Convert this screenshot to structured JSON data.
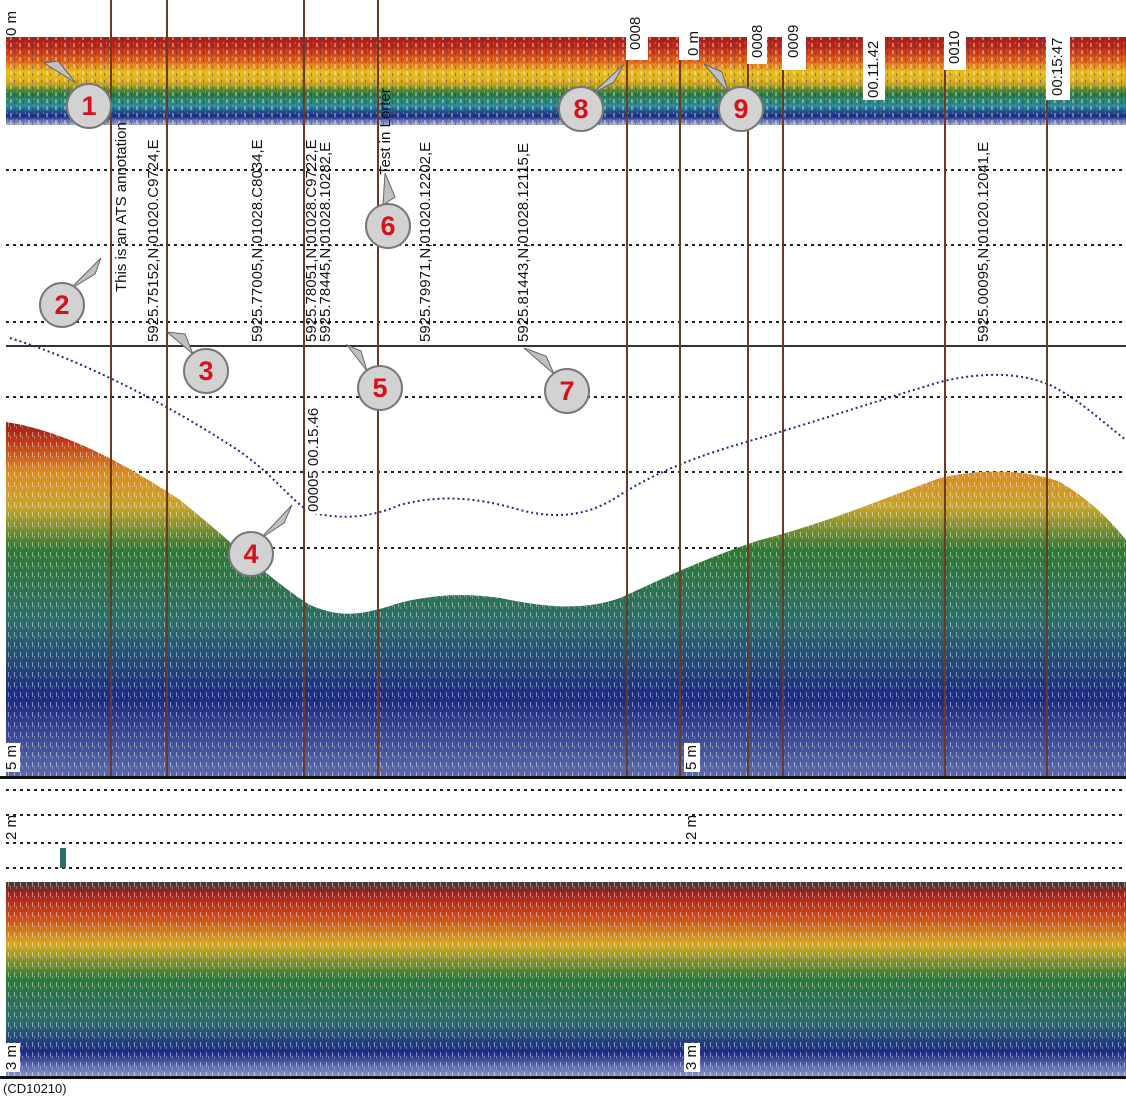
{
  "echogram": {
    "upper_panel": {
      "depth_top_label": "0 m",
      "depth_bottom_label": "5 m"
    },
    "lower_panel": {
      "depth_top_label": "2 m",
      "depth_bottom_label": "3 m"
    },
    "annotations": {
      "ats_annotation": "This is an ATS annotation",
      "position_1": "5925.75152,N,01020.C9724,E",
      "position_2": "5925.77005,N,01028.C8034,E",
      "position_3a": "5925.78051,N,01028.C9722,E",
      "position_3b": "5925.78445,N,01028.10282,E",
      "time_label": "00005 00.15.46",
      "test_annotation": "Test in Lorter",
      "position_4": "5925.79971,N,01020.12202,E",
      "position_5": "5925.81443,N,01028.12115,E",
      "right_time_1": "00.11.42",
      "right_time_2": "00:15:47",
      "right_position": "5925.00095,N,01020.12041,E",
      "right_depth": "0 m",
      "marker_a": "0008",
      "marker_b": "0008",
      "marker_c": "0009",
      "marker_d": "0010"
    }
  },
  "callouts": [
    {
      "label": "1"
    },
    {
      "label": "2"
    },
    {
      "label": "3"
    },
    {
      "label": "4"
    },
    {
      "label": "5"
    },
    {
      "label": "6"
    },
    {
      "label": "7"
    },
    {
      "label": "8"
    },
    {
      "label": "9"
    }
  ],
  "caption": "(CD10210)",
  "colors": {
    "red": "#a8201a",
    "orange": "#e0661c",
    "yellow": "#e8c020",
    "green": "#2a7a3a",
    "blue": "#1c2a86",
    "callout_text": "#d3121b",
    "vertical_lines": "#6b3a22"
  }
}
